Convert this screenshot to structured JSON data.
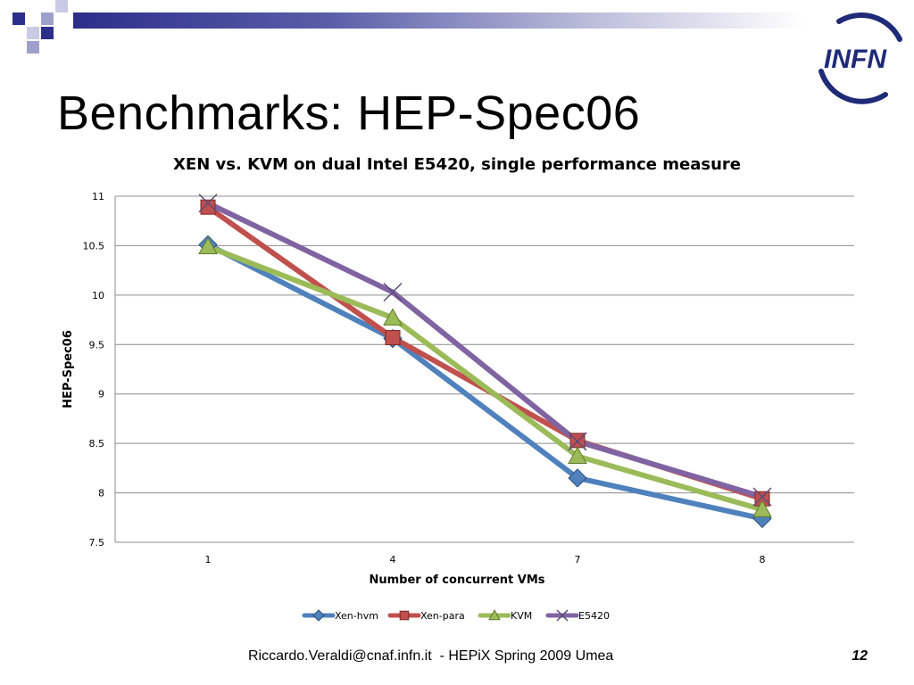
{
  "slide": {
    "title": "Benchmarks: HEP-Spec06",
    "footer": "Riccardo.Veraldi@cnaf.infn.it  - HEPiX Spring 2009 Umea",
    "page_number": "12",
    "logo_text": "INFN",
    "accent_color": "#2c2f8a"
  },
  "chart_data": {
    "type": "line",
    "title": "XEN vs. KVM on dual Intel E5420, single performance measure",
    "xlabel": "Number of concurrent VMs",
    "ylabel": "HEP-Spec06",
    "categories": [
      "1",
      "4",
      "7",
      "8"
    ],
    "ylim": [
      7.5,
      11
    ],
    "yticks": [
      "7.5",
      "8",
      "8.5",
      "9",
      "9.5",
      "10",
      "10.5",
      "11"
    ],
    "grid": true,
    "legend_position": "bottom",
    "series": [
      {
        "name": "Xen-hvm",
        "color": "#4f81bd",
        "marker": "diamond",
        "values": [
          10.51,
          9.56,
          8.15,
          7.74
        ]
      },
      {
        "name": "Xen-para",
        "color": "#c0504d",
        "marker": "square",
        "values": [
          10.89,
          9.57,
          8.53,
          7.94
        ]
      },
      {
        "name": "KVM",
        "color": "#9bbb59",
        "marker": "triangle",
        "values": [
          10.49,
          9.77,
          8.37,
          7.83
        ]
      },
      {
        "name": "E5420",
        "color": "#8064a2",
        "marker": "x",
        "values": [
          10.93,
          10.03,
          8.52,
          7.96
        ]
      }
    ]
  }
}
